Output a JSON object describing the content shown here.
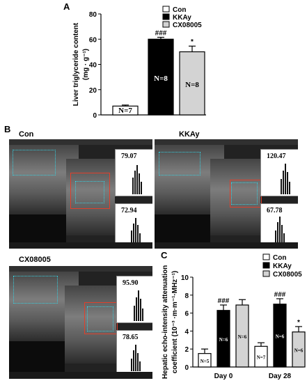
{
  "panels": {
    "a": "A",
    "b": "B",
    "c": "C"
  },
  "panel_b_labels": {
    "con": "Con",
    "kkay": "KKAy",
    "cx": "CX08005"
  },
  "hist_values": {
    "con_top": "79.07",
    "con_bottom": "72.94",
    "kkay_top": "120.47",
    "kkay_bottom": "67.78",
    "cx_top": "95.90",
    "cx_bottom": "78.65"
  },
  "colors": {
    "con": "#ffffff",
    "kkay": "#000000",
    "cx": "#d3d3d3",
    "roi": "#e0402c",
    "trace": "#35d0e0"
  },
  "chart_data": [
    {
      "type": "bar",
      "ylabel_line1": "Liver triglyceride content",
      "ylabel_line2": "(mg · g⁻¹)",
      "ylim": [
        0,
        80
      ],
      "yticks": [
        0,
        20,
        40,
        60,
        80
      ],
      "series": [
        {
          "name": "Con",
          "value": 7,
          "err": 0.8,
          "n_label": "N=7",
          "sig": ""
        },
        {
          "name": "KKAy",
          "value": 60,
          "err": 1.5,
          "n_label": "N=8",
          "sig": "###"
        },
        {
          "name": "CX08005",
          "value": 50,
          "err": 4.5,
          "n_label": "N=8",
          "sig": "*"
        }
      ],
      "legend": [
        "Con",
        "KKAy",
        "CX08005"
      ],
      "legend_position": "top-right"
    },
    {
      "type": "bar",
      "ylabel_line1": "Hepatic echo-intensity attenuation",
      "ylabel_line2": "coefficient (10⁻³ ·m·m⁻¹·MHz⁻¹)",
      "ylim": [
        0,
        10
      ],
      "yticks": [
        0,
        2,
        4,
        6,
        8,
        10
      ],
      "categories": [
        "Day 0",
        "Day 28"
      ],
      "series": [
        {
          "name": "Con",
          "values": [
            1.5,
            2.3
          ],
          "errs": [
            0.5,
            0.4
          ],
          "n_labels": [
            "N=5",
            "N=7"
          ],
          "sig": [
            "",
            ""
          ]
        },
        {
          "name": "KKAy",
          "values": [
            6.3,
            7.0
          ],
          "errs": [
            0.6,
            0.6
          ],
          "n_labels": [
            "N=6",
            "N=6"
          ],
          "sig": [
            "###",
            "###"
          ]
        },
        {
          "name": "CX08005",
          "values": [
            6.9,
            3.9
          ],
          "errs": [
            0.6,
            0.6
          ],
          "n_labels": [
            "N=6",
            "N=6"
          ],
          "sig": [
            "",
            "*"
          ]
        }
      ],
      "legend": [
        "Con",
        "KKAy",
        "CX08005"
      ],
      "legend_position": "top-right"
    }
  ]
}
